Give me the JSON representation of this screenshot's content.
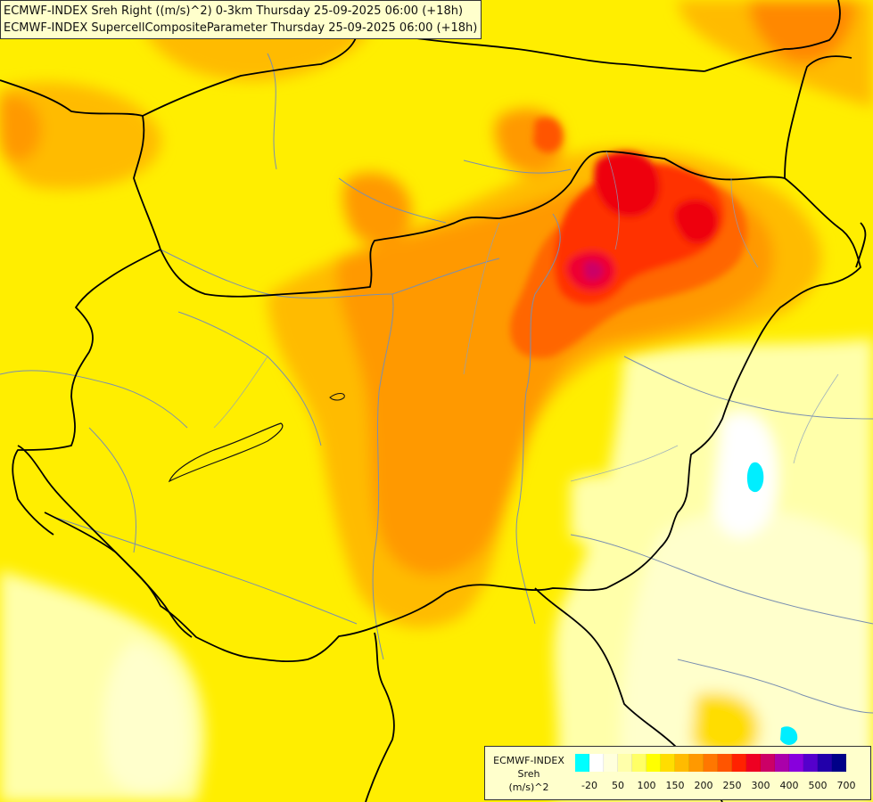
{
  "header": {
    "line1": "ECMWF-INDEX Sreh Right ((m/s)^2) 0-3km Thursday 25-09-2025 06:00 (+18h)",
    "line2": "ECMWF-INDEX SupercellCompositeParameter Thursday 25-09-2025 06:00 (+18h)"
  },
  "legend": {
    "title_line1": "ECMWF-INDEX",
    "title_line2": "Sreh",
    "title_line3": "(m/s)^2",
    "colors": [
      "#00ffff",
      "#ffffff",
      "#ffffdd",
      "#ffffaa",
      "#ffff66",
      "#ffff00",
      "#ffdd00",
      "#ffbb00",
      "#ff9900",
      "#ff7700",
      "#ff5500",
      "#ff2200",
      "#ee0022",
      "#cc0066",
      "#aa00aa",
      "#8800dd",
      "#5500cc",
      "#2200aa",
      "#000088"
    ],
    "tick_labels": [
      "-20",
      "50",
      "100",
      "150",
      "200",
      "250",
      "300",
      "400",
      "500",
      "700"
    ]
  },
  "map": {
    "region": "Pannonian Basin / Hungary",
    "field_colors": {
      "low": "#ffffcc",
      "mid": "#ffee00",
      "high": "#ff9900",
      "peak": "#ee0033",
      "extreme": "#cc0066"
    }
  }
}
